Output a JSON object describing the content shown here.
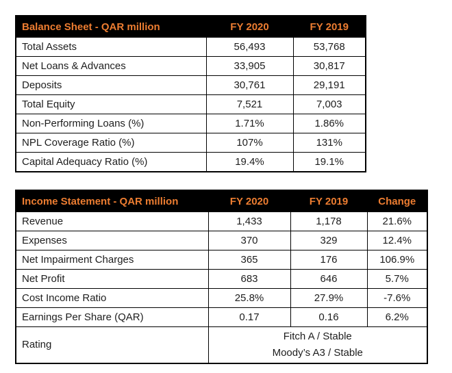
{
  "colors": {
    "header_bg": "#000000",
    "header_text": "#ED7D31",
    "body_text": "#1d1d1d",
    "border": "#000000",
    "page_bg": "#ffffff"
  },
  "balance_sheet": {
    "title": "Balance Sheet - QAR million",
    "columns": [
      "FY 2020",
      "FY 2019"
    ],
    "rows": [
      {
        "label": "Total Assets",
        "values": [
          "56,493",
          "53,768"
        ]
      },
      {
        "label": "Net Loans & Advances",
        "values": [
          "33,905",
          "30,817"
        ]
      },
      {
        "label": "Deposits",
        "values": [
          "30,761",
          "29,191"
        ]
      },
      {
        "label": "Total Equity",
        "values": [
          "7,521",
          "7,003"
        ]
      },
      {
        "label": "Non-Performing Loans (%)",
        "values": [
          "1.71%",
          "1.86%"
        ]
      },
      {
        "label": "NPL Coverage Ratio (%)",
        "values": [
          "107%",
          "131%"
        ]
      },
      {
        "label": "Capital Adequacy Ratio (%)",
        "values": [
          "19.4%",
          "19.1%"
        ]
      }
    ]
  },
  "income_statement": {
    "title": "Income Statement - QAR million",
    "columns": [
      "FY 2020",
      "FY 2019",
      "Change"
    ],
    "rows": [
      {
        "label": "Revenue",
        "values": [
          "1,433",
          "1,178",
          "21.6%"
        ]
      },
      {
        "label": "Expenses",
        "values": [
          "370",
          "329",
          "12.4%"
        ]
      },
      {
        "label": "Net Impairment Charges",
        "values": [
          "365",
          "176",
          "106.9%"
        ]
      },
      {
        "label": "Net Profit",
        "values": [
          "683",
          "646",
          "5.7%"
        ]
      },
      {
        "label": "Cost Income Ratio",
        "values": [
          "25.8%",
          "27.9%",
          "-7.6%"
        ]
      },
      {
        "label": "Earnings Per Share (QAR)",
        "values": [
          "0.17",
          "0.16",
          "6.2%"
        ]
      }
    ],
    "rating": {
      "label": "Rating",
      "line1": "Fitch A / Stable",
      "line2": "Moody’s A3 / Stable"
    }
  }
}
